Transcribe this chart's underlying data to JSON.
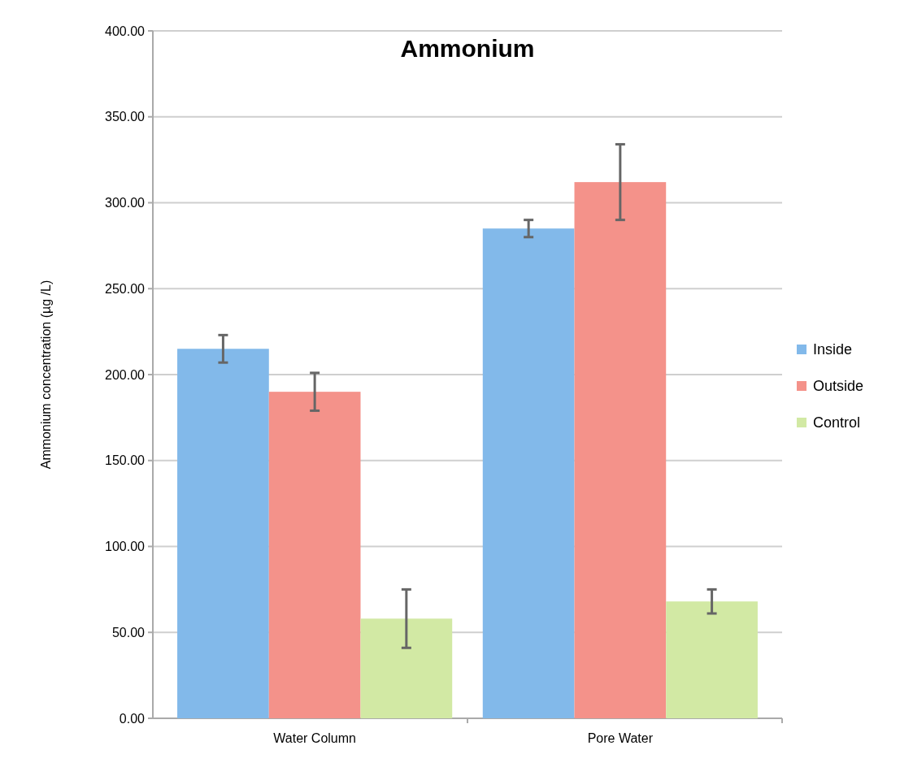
{
  "chart_data": {
    "type": "bar",
    "title": "Ammonium",
    "ylabel": "Ammonium concentration (µg /L)",
    "categories": [
      "Water Column",
      "Pore Water"
    ],
    "series": [
      {
        "name": "Inside",
        "color": "#82b9ea",
        "values": [
          215,
          285
        ],
        "errors": [
          8,
          5
        ]
      },
      {
        "name": "Outside",
        "color": "#f4928a",
        "values": [
          190,
          312
        ],
        "errors": [
          11,
          22
        ]
      },
      {
        "name": "Control",
        "color": "#d2e9a4",
        "values": [
          58,
          68
        ],
        "errors": [
          17,
          7
        ]
      }
    ],
    "ylim": [
      0,
      400
    ],
    "yticks": [
      {
        "value": 0,
        "label": "0.00"
      },
      {
        "value": 50,
        "label": "50.00"
      },
      {
        "value": 100,
        "label": "100.00"
      },
      {
        "value": 150,
        "label": "150.00"
      },
      {
        "value": 200,
        "label": "200.00"
      },
      {
        "value": 250,
        "label": "250.00"
      },
      {
        "value": 300,
        "label": "300.00"
      },
      {
        "value": 350,
        "label": "350.00"
      },
      {
        "value": 400,
        "label": "400.00"
      }
    ],
    "grid": "y",
    "legend": "right"
  }
}
